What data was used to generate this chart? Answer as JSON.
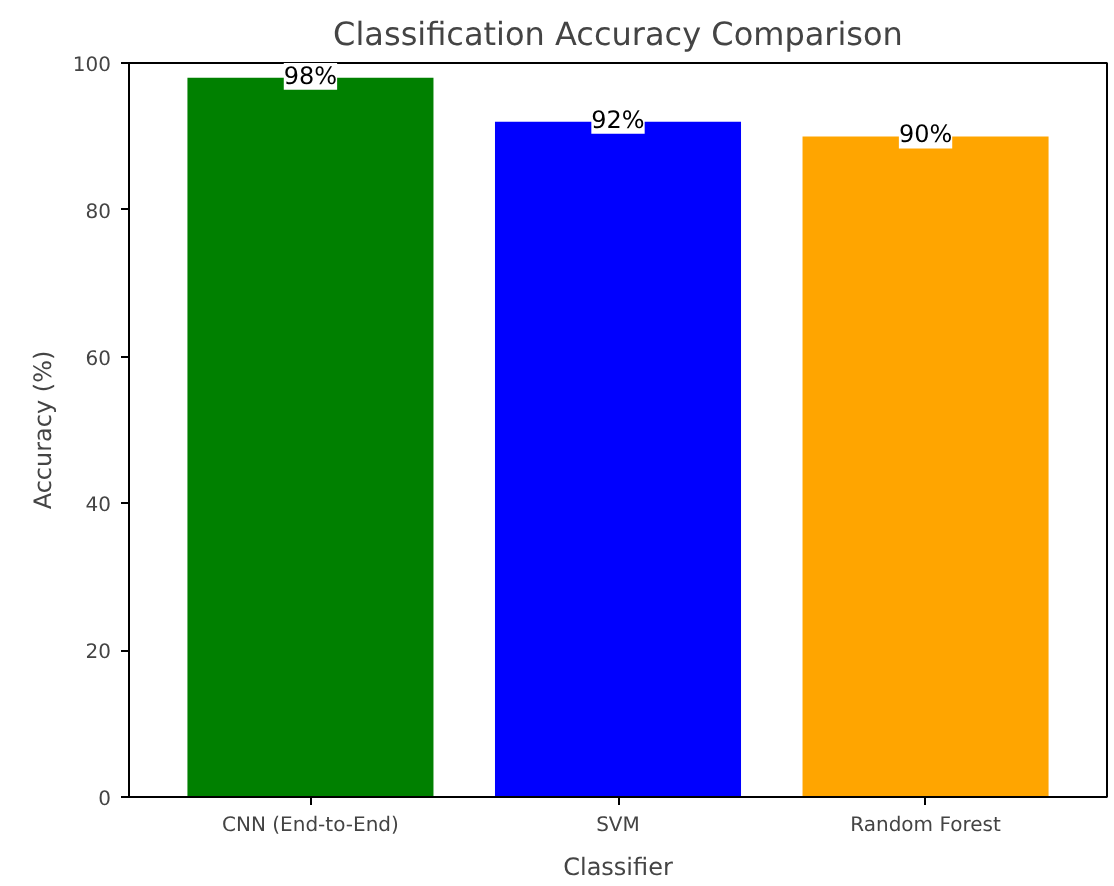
{
  "chart_data": {
    "type": "bar",
    "title": "Classification Accuracy Comparison",
    "xlabel": "Classifier",
    "ylabel": "Accuracy (%)",
    "categories": [
      "CNN (End-to-End)",
      "SVM",
      "Random Forest"
    ],
    "values": [
      98,
      92,
      90
    ],
    "colors": [
      "#008000",
      "#0000ff",
      "#ffa500"
    ],
    "value_labels": [
      "98%",
      "92%",
      "90%"
    ],
    "ylim": [
      0,
      100
    ],
    "yticks": [
      0,
      20,
      40,
      60,
      80,
      100
    ],
    "grid": false
  }
}
